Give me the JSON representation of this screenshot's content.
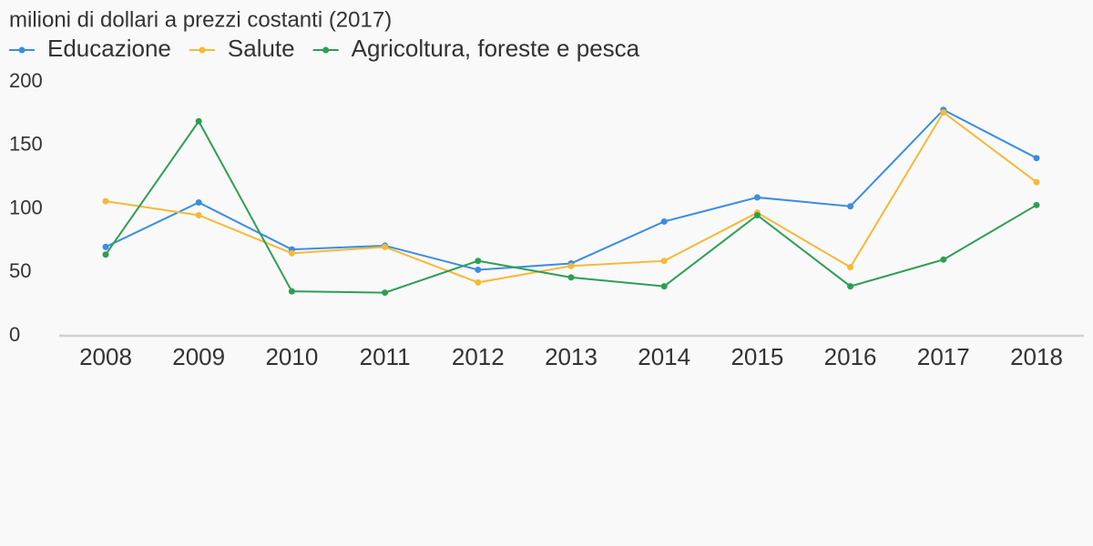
{
  "chart_data": {
    "type": "line",
    "title": "milioni di dollari a prezzi costanti (2017)",
    "categories": [
      "2008",
      "2009",
      "2010",
      "2011",
      "2012",
      "2013",
      "2014",
      "2015",
      "2016",
      "2017",
      "2018"
    ],
    "series": [
      {
        "name": "Educazione",
        "color": "#3b8de0",
        "values": [
          70,
          105,
          68,
          71,
          52,
          57,
          90,
          109,
          102,
          178,
          140
        ]
      },
      {
        "name": "Salute",
        "color": "#f5b938",
        "values": [
          106,
          95,
          65,
          70,
          42,
          55,
          59,
          97,
          54,
          176,
          121
        ]
      },
      {
        "name": "Agricoltura, foreste e pesca",
        "color": "#2e9e55",
        "values": [
          64,
          169,
          35,
          34,
          59,
          46,
          39,
          95,
          39,
          60,
          103
        ]
      }
    ],
    "ylim": [
      0,
      200
    ],
    "yticks": [
      0,
      50,
      100,
      150,
      200
    ],
    "grid": false
  }
}
